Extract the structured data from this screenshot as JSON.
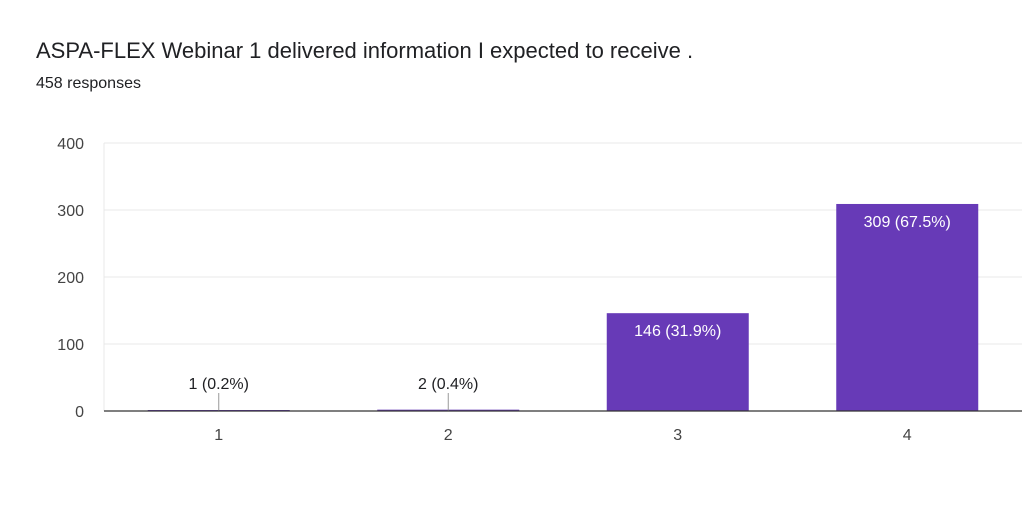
{
  "header": {
    "title": "ASPA-FLEX Webinar 1 delivered information I expected to receive .",
    "responses": "458 responses"
  },
  "colors": {
    "bar": "#673ab7",
    "grid": "#e8e8e8",
    "axis": "#333333",
    "label_inside": "#ffffff",
    "label_outside": "#202124"
  },
  "chart_data": {
    "type": "bar",
    "title": "ASPA-FLEX Webinar 1 delivered information I expected to receive .",
    "subtitle": "458 responses",
    "categories": [
      "1",
      "2",
      "3",
      "4"
    ],
    "values": [
      1,
      2,
      146,
      309
    ],
    "labels": [
      "1 (0.2%)",
      "2 (0.4%)",
      "146 (31.9%)",
      "309 (67.5%)"
    ],
    "yticks": [
      "0",
      "100",
      "200",
      "300",
      "400"
    ],
    "ylim": [
      0,
      400
    ],
    "grid": true,
    "legend": "none"
  }
}
